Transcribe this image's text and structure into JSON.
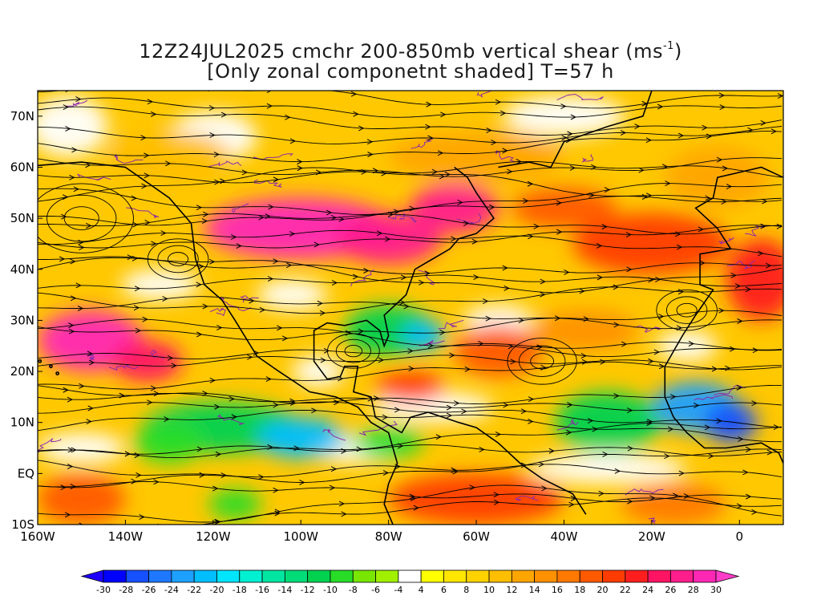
{
  "title": {
    "line1_prefix": "12Z24JUL2025 cmchr 200-850mb vertical shear (ms",
    "line1_sup": "-1",
    "line1_suffix": ")",
    "line2": "[Only zonal componetnt shaded] T=57 h"
  },
  "map": {
    "lat_labels": [
      "70N",
      "60N",
      "50N",
      "40N",
      "30N",
      "20N",
      "10N",
      "EQ",
      "10S"
    ],
    "lat_values": [
      70,
      60,
      50,
      40,
      30,
      20,
      10,
      0,
      -10
    ],
    "lon_labels": [
      "160W",
      "140W",
      "120W",
      "100W",
      "80W",
      "60W",
      "40W",
      "20W",
      "0"
    ],
    "lon_values": [
      -160,
      -140,
      -120,
      -100,
      -80,
      -60,
      -40,
      -20,
      0
    ],
    "lat_range": [
      -10,
      75
    ],
    "lon_range": [
      -160,
      10
    ],
    "shaded_field": "zonal component of 200-850mb vertical shear",
    "overlays": [
      "shear streamlines",
      "purple contours",
      "coastlines",
      "borders"
    ]
  },
  "colorbar": {
    "labels": [
      "-30",
      "-28",
      "-26",
      "-24",
      "-22",
      "-20",
      "-18",
      "-16",
      "-14",
      "-12",
      "-10",
      "-8",
      "-6",
      "-4",
      "4",
      "6",
      "8",
      "10",
      "12",
      "14",
      "16",
      "18",
      "20",
      "22",
      "24",
      "26",
      "28",
      "30"
    ],
    "colors": [
      "#0000ff",
      "#1650ff",
      "#1e78ff",
      "#1ea0ff",
      "#00beff",
      "#00e6ff",
      "#00f0d2",
      "#00e6a0",
      "#00dc78",
      "#00d250",
      "#28dc28",
      "#78e600",
      "#a0f000",
      "#ffffff",
      "#ffff00",
      "#ffe600",
      "#ffd200",
      "#ffbe00",
      "#ffa500",
      "#ff9100",
      "#ff7800",
      "#ff5a00",
      "#ff3c00",
      "#ff1e1e",
      "#ff1464",
      "#ff1e8c",
      "#ff28b4"
    ],
    "under_color": "#1e00ff",
    "over_color": "#ff3cc8"
  }
}
